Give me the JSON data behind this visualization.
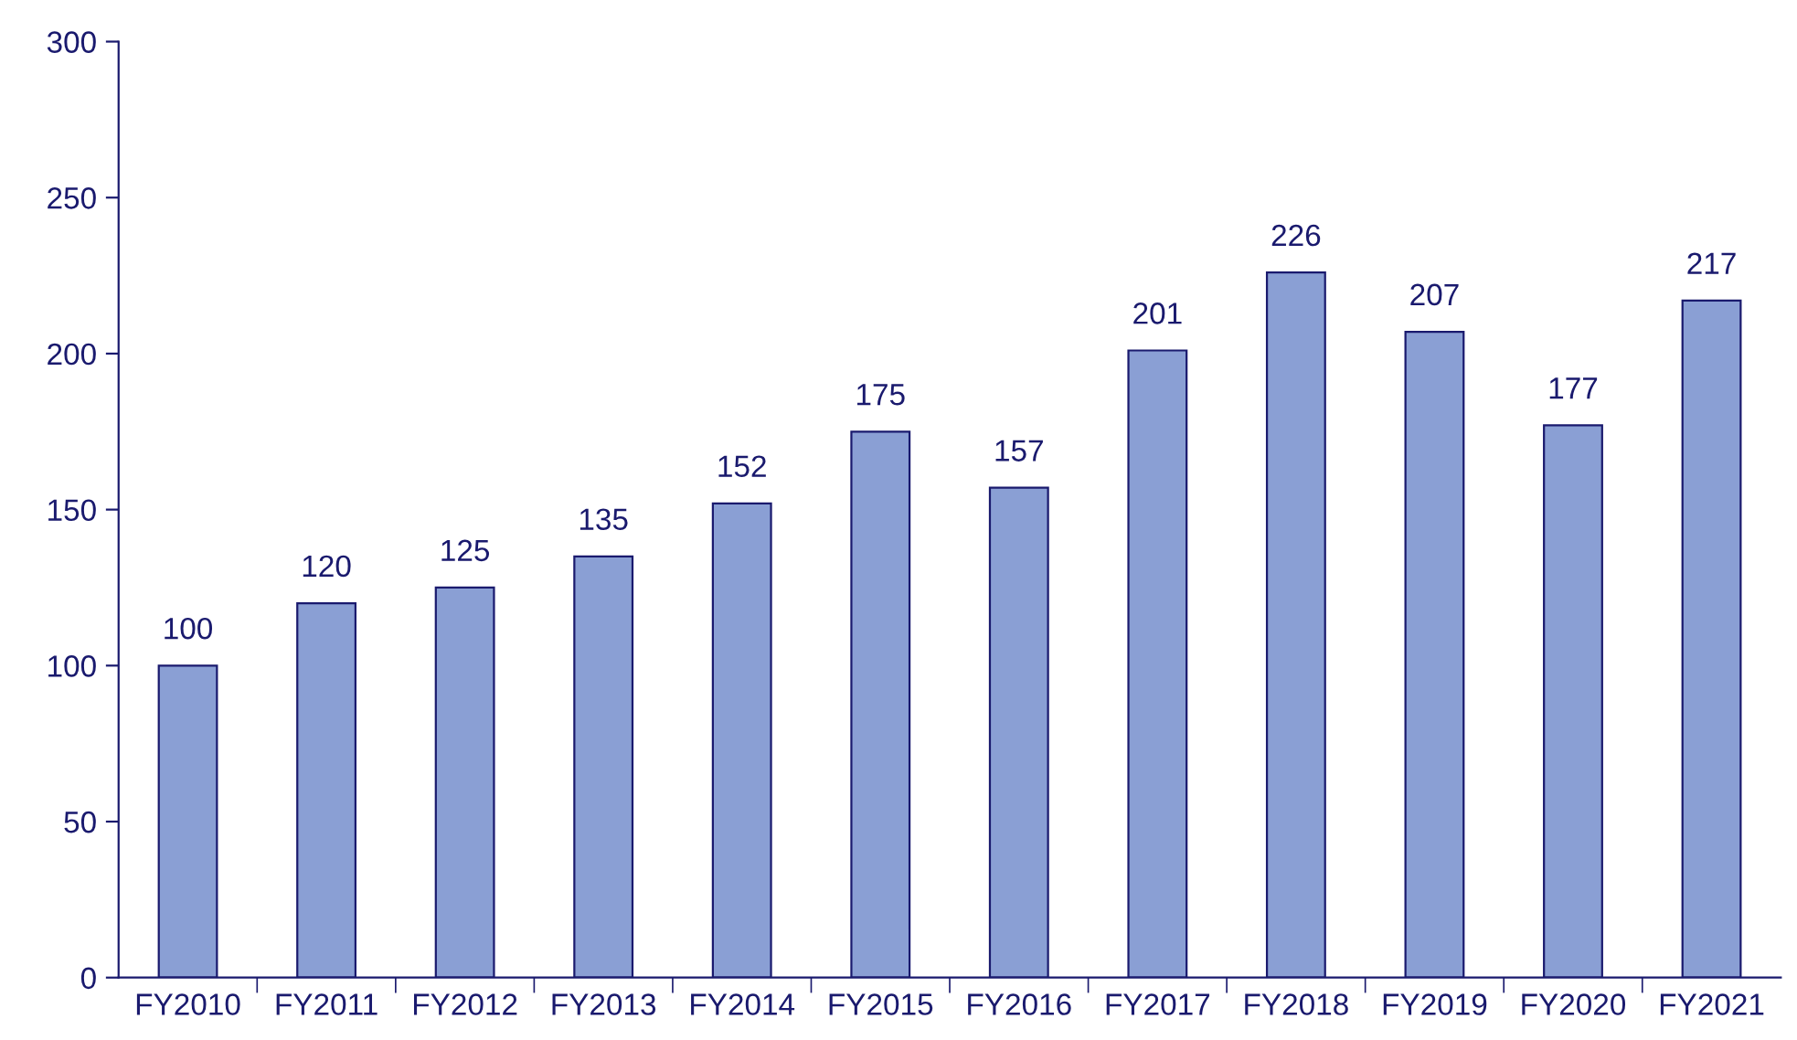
{
  "chart_data": {
    "type": "bar",
    "categories": [
      "FY2010",
      "FY2011",
      "FY2012",
      "FY2013",
      "FY2014",
      "FY2015",
      "FY2016",
      "FY2017",
      "FY2018",
      "FY2019",
      "FY2020",
      "FY2021"
    ],
    "values": [
      100,
      120,
      125,
      135,
      152,
      175,
      157,
      201,
      226,
      207,
      177,
      217
    ],
    "color": "#8a9fd4",
    "ylim": [
      0,
      300
    ],
    "yticks": [
      0,
      50,
      100,
      150,
      200,
      250,
      300
    ],
    "grid": false,
    "legend": false,
    "data_labels": true
  }
}
